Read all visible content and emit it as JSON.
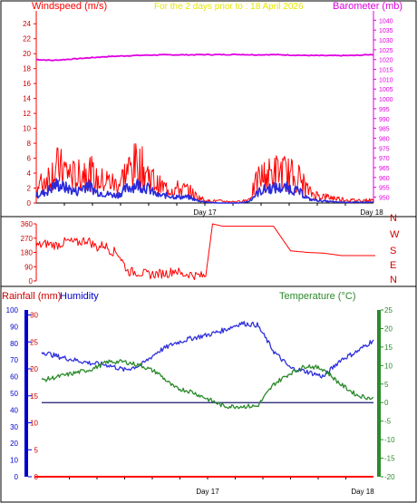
{
  "header": {
    "windspeed_label": "Windspeed (m/s)",
    "title": "For the 2 days prior to : 18 April 2026",
    "barometer_label": "Barometer (mb)"
  },
  "labels": {
    "rainfall": "Rainfall (mm)",
    "humidity": "Humidity",
    "temperature": "Temperature (°C)",
    "day17": "Day 17",
    "day18": "Day 18"
  },
  "colors": {
    "wind_gust": "#ff0000",
    "wind_avg": "#2a2adc",
    "barometer": "#e000e0",
    "direction": "#ff0000",
    "humidity": "#3030dd",
    "temperature": "#2a8a2a",
    "rainfall": "#ff0000",
    "baseline": "#1a1a6e",
    "axis_rain": "#0000cc",
    "axis_temp": "#2a8a2a"
  },
  "chart_data": [
    {
      "type": "line",
      "panel": "wind-barometer",
      "title": "For the 2 days prior to : 18 April 2026",
      "ylabel": "Windspeed (m/s)",
      "y2label": "Barometer (mb)",
      "ylim": [
        0,
        25
      ],
      "y_ticks": [
        0,
        2,
        4,
        6,
        8,
        10,
        12,
        14,
        16,
        18,
        20,
        22,
        24
      ],
      "y2lim": [
        947,
        1042
      ],
      "y2_ticks": [
        950,
        955,
        960,
        965,
        970,
        975,
        980,
        985,
        990,
        995,
        1000,
        1005,
        1010,
        1015,
        1020,
        1025,
        1030,
        1035,
        1040
      ],
      "x_ticks": [
        "Day 17",
        "Day 18"
      ],
      "series": [
        {
          "axis": "y2",
          "x": [
            0,
            0.05,
            0.1,
            0.15,
            0.2,
            0.25,
            0.3,
            0.35,
            0.4,
            0.45,
            0.5,
            0.55,
            0.6,
            0.65,
            0.7,
            0.75,
            0.8,
            0.85,
            0.9,
            0.95,
            1.0
          ],
          "values": [
            1020,
            1019.6,
            1020.2,
            1020.8,
            1021.4,
            1021.8,
            1022.1,
            1022.3,
            1022.4,
            1022.4,
            1022.5,
            1022.5,
            1022.6,
            1022.4,
            1022.5,
            1022.3,
            1022.1,
            1022.0,
            1022.0,
            1022.1,
            1022.6
          ]
        },
        {
          "axis": "y",
          "x": [
            0,
            0.03,
            0.06,
            0.09,
            0.12,
            0.15,
            0.18,
            0.21,
            0.24,
            0.27,
            0.3,
            0.33,
            0.36,
            0.39,
            0.42,
            0.45,
            0.48,
            0.51,
            0.54,
            0.57,
            0.6,
            0.63,
            0.66,
            0.69,
            0.72,
            0.75,
            0.78,
            0.81,
            0.84,
            0.87,
            0.9,
            0.93,
            0.96,
            1.0
          ],
          "values": [
            2.0,
            3.5,
            5.0,
            4.5,
            3.5,
            5.0,
            3.0,
            3.2,
            2.5,
            4.5,
            5.5,
            4.2,
            2.5,
            2.0,
            2.0,
            1.8,
            0.8,
            0.3,
            0.3,
            0.2,
            0.2,
            0.5,
            3.5,
            4.0,
            4.5,
            4.0,
            3.5,
            1.5,
            1.0,
            0.8,
            0.6,
            0.4,
            0.4,
            0.4
          ]
        },
        {
          "axis": "y",
          "x": [
            0,
            0.03,
            0.06,
            0.09,
            0.12,
            0.15,
            0.18,
            0.21,
            0.24,
            0.27,
            0.3,
            0.33,
            0.36,
            0.39,
            0.42,
            0.45,
            0.48,
            0.51,
            0.54,
            0.57,
            0.6,
            0.63,
            0.66,
            0.69,
            0.72,
            0.75,
            0.78,
            0.81,
            0.84,
            0.87,
            0.9,
            0.93,
            0.96,
            1.0
          ],
          "values": [
            1.0,
            1.5,
            2.5,
            2.0,
            1.5,
            2.5,
            1.5,
            1.2,
            1.0,
            2.0,
            2.5,
            2.0,
            1.0,
            1.0,
            0.8,
            0.8,
            0.3,
            0.1,
            0.0,
            0.0,
            0.0,
            0.2,
            1.5,
            2.0,
            2.0,
            2.0,
            1.5,
            0.5,
            0.3,
            0.2,
            0.1,
            0.1,
            0.1,
            0.1
          ]
        }
      ]
    },
    {
      "type": "line",
      "panel": "wind-direction",
      "y_ticks": [
        0,
        90,
        180,
        270,
        360
      ],
      "ylim": [
        0,
        360
      ],
      "compass_labels": [
        "N",
        "W",
        "S",
        "E",
        "N"
      ],
      "series": [
        {
          "x": [
            0,
            0.03,
            0.06,
            0.09,
            0.12,
            0.15,
            0.18,
            0.2,
            0.22,
            0.24,
            0.27,
            0.3,
            0.33,
            0.36,
            0.39,
            0.41,
            0.43,
            0.45,
            0.47,
            0.5,
            0.52,
            0.55,
            0.6,
            0.65,
            0.7,
            0.75,
            0.8,
            0.85,
            0.9,
            0.95,
            1.0
          ],
          "values": [
            220,
            235,
            225,
            250,
            240,
            260,
            210,
            230,
            190,
            180,
            60,
            55,
            40,
            45,
            50,
            70,
            40,
            45,
            35,
            30,
            360,
            345,
            345,
            345,
            345,
            190,
            180,
            175,
            160,
            160,
            160
          ]
        }
      ]
    },
    {
      "type": "line",
      "panel": "humidity-temperature-rainfall",
      "ylabel": "Rainfall (mm)",
      "y_ticks_humidity": [
        0,
        10,
        20,
        30,
        40,
        50,
        60,
        70,
        80,
        90,
        100
      ],
      "y_ticks_rain": [
        0,
        5,
        10,
        15,
        20,
        25,
        30
      ],
      "y2label": "Temperature (°C)",
      "y2lim": [
        -20,
        25
      ],
      "y2_ticks": [
        -20,
        -15,
        -10,
        -5,
        0,
        5,
        10,
        15,
        20,
        25
      ],
      "x_ticks": [
        "Day 17",
        "Day 18"
      ],
      "series": [
        {
          "name": "Humidity",
          "x": [
            0,
            0.05,
            0.1,
            0.15,
            0.2,
            0.25,
            0.3,
            0.35,
            0.4,
            0.45,
            0.5,
            0.55,
            0.6,
            0.65,
            0.7,
            0.75,
            0.8,
            0.85,
            0.9,
            0.95,
            1.0
          ],
          "values": [
            75,
            72,
            70,
            68,
            67,
            64,
            67,
            75,
            80,
            83,
            85,
            88,
            92,
            91,
            75,
            65,
            63,
            60,
            70,
            75,
            82
          ]
        },
        {
          "name": "Temperature",
          "x": [
            0,
            0.05,
            0.1,
            0.15,
            0.2,
            0.25,
            0.3,
            0.35,
            0.4,
            0.45,
            0.5,
            0.55,
            0.6,
            0.65,
            0.7,
            0.75,
            0.8,
            0.85,
            0.9,
            0.95,
            1.0
          ],
          "values": [
            6,
            7,
            8,
            9,
            11,
            11,
            10,
            8,
            4,
            3,
            1,
            -1,
            -1,
            -1,
            5,
            8,
            10,
            9,
            5,
            2,
            1
          ]
        },
        {
          "name": "Rainfall",
          "x": [
            0,
            1
          ],
          "values": [
            0,
            0
          ]
        }
      ]
    }
  ]
}
